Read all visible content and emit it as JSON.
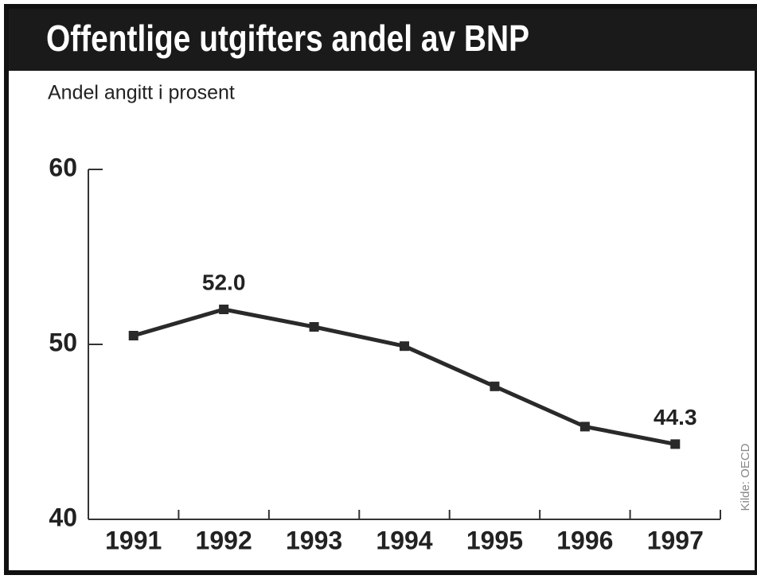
{
  "chart_data": {
    "type": "line",
    "title": "Offentlige utgifters andel av BNP",
    "subtitle": "Andel angitt i prosent",
    "source": "Kilde: OECD",
    "categories": [
      "1991",
      "1992",
      "1993",
      "1994",
      "1995",
      "1996",
      "1997"
    ],
    "series": [
      {
        "name": null,
        "color": "#2a2a2a",
        "values": [
          50.5,
          52.0,
          51.0,
          49.9,
          47.6,
          45.3,
          44.3
        ]
      }
    ],
    "value_labels": [
      null,
      "52.0",
      null,
      null,
      null,
      null,
      "44.3"
    ],
    "ylim": [
      40,
      60
    ],
    "yticks": [
      40,
      50,
      60
    ],
    "grid": false
  }
}
